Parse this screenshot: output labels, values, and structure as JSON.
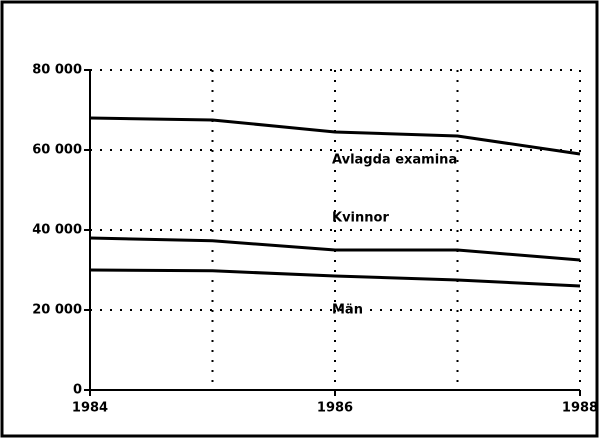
{
  "chart_data": {
    "type": "line",
    "x": [
      1984,
      1985,
      1986,
      1987,
      1988
    ],
    "series": [
      {
        "name": "Avlagda examina",
        "color": "#000000",
        "values": [
          68000,
          67500,
          64500,
          63500,
          59000
        ]
      },
      {
        "name": "Kvinnor",
        "color": "#000000",
        "values": [
          38000,
          37300,
          35000,
          35000,
          32500
        ]
      },
      {
        "name": "Män",
        "color": "#000000",
        "values": [
          30000,
          29800,
          28500,
          27500,
          26000
        ]
      }
    ],
    "xlim": [
      1984,
      1988
    ],
    "xticks": [
      1984,
      1986,
      1988
    ],
    "xgrid": [
      1985,
      1986,
      1987,
      1988
    ],
    "ylim": [
      0,
      80000
    ],
    "yticks": [
      0,
      {
        "value": 20000,
        "label": "20 000"
      },
      {
        "value": 40000,
        "label": "40 000"
      },
      {
        "value": 60000,
        "label": "60 000"
      },
      {
        "value": 80000,
        "label": "80 000"
      }
    ],
    "grid": true
  }
}
